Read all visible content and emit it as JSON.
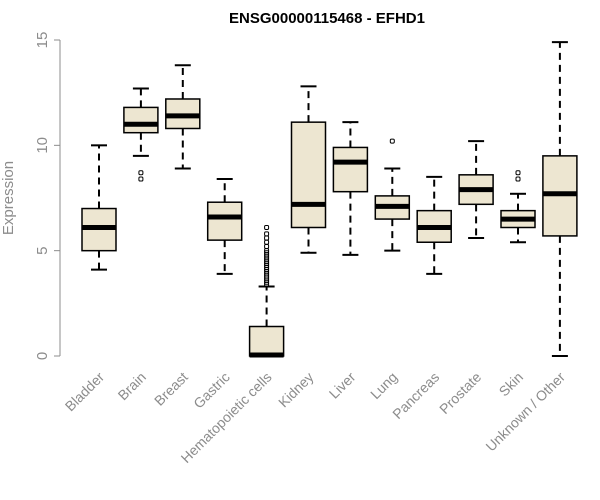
{
  "chart_data": {
    "type": "boxplot",
    "title": "ENSG00000115468 - EFHD1",
    "ylabel": "Expression",
    "xlabel": "",
    "ylim": [
      0,
      15
    ],
    "yticks": [
      0,
      5,
      10,
      15
    ],
    "grid": false,
    "box_color": "#ede6d1",
    "line_color": "#000000",
    "categories": [
      "Bladder",
      "Brain",
      "Breast",
      "Gastric",
      "Hematopoietic cells",
      "Kidney",
      "Liver",
      "Lung",
      "Pancreas",
      "Prostate",
      "Skin",
      "Unknown / Other"
    ],
    "boxes": [
      {
        "category": "Bladder",
        "whisker_low": 4.1,
        "q1": 5.0,
        "median": 6.1,
        "q3": 7.0,
        "whisker_high": 10.0,
        "outliers": []
      },
      {
        "category": "Brain",
        "whisker_low": 9.5,
        "q1": 10.6,
        "median": 11.0,
        "q3": 11.8,
        "whisker_high": 12.7,
        "outliers": [
          8.4,
          8.7
        ]
      },
      {
        "category": "Breast",
        "whisker_low": 8.9,
        "q1": 10.8,
        "median": 11.4,
        "q3": 12.2,
        "whisker_high": 13.8,
        "outliers": []
      },
      {
        "category": "Gastric",
        "whisker_low": 3.9,
        "q1": 5.5,
        "median": 6.6,
        "q3": 7.3,
        "whisker_high": 8.4,
        "outliers": []
      },
      {
        "category": "Hematopoietic cells",
        "whisker_low": 0.0,
        "q1": 0.0,
        "median": 0.05,
        "q3": 1.4,
        "whisker_high": 3.3,
        "outliers": [
          3.4,
          3.5,
          3.6,
          3.7,
          3.8,
          3.9,
          4.0,
          4.1,
          4.2,
          4.3,
          4.4,
          4.5,
          4.6,
          4.7,
          4.8,
          4.9,
          5.0,
          5.2,
          5.4,
          5.6,
          5.8,
          6.1
        ]
      },
      {
        "category": "Kidney",
        "whisker_low": 4.9,
        "q1": 6.1,
        "median": 7.2,
        "q3": 11.1,
        "whisker_high": 12.8,
        "outliers": []
      },
      {
        "category": "Liver",
        "whisker_low": 4.8,
        "q1": 7.8,
        "median": 9.2,
        "q3": 9.9,
        "whisker_high": 11.1,
        "outliers": []
      },
      {
        "category": "Lung",
        "whisker_low": 5.0,
        "q1": 6.5,
        "median": 7.1,
        "q3": 7.6,
        "whisker_high": 8.9,
        "outliers": [
          10.2
        ]
      },
      {
        "category": "Pancreas",
        "whisker_low": 3.9,
        "q1": 5.4,
        "median": 6.1,
        "q3": 6.9,
        "whisker_high": 8.5,
        "outliers": []
      },
      {
        "category": "Prostate",
        "whisker_low": 5.6,
        "q1": 7.2,
        "median": 7.9,
        "q3": 8.6,
        "whisker_high": 10.2,
        "outliers": []
      },
      {
        "category": "Skin",
        "whisker_low": 5.4,
        "q1": 6.1,
        "median": 6.5,
        "q3": 6.9,
        "whisker_high": 7.7,
        "outliers": [
          8.4,
          8.7
        ]
      },
      {
        "category": "Unknown / Other",
        "whisker_low": 0.0,
        "q1": 5.7,
        "median": 7.7,
        "q3": 9.5,
        "whisker_high": 14.9,
        "outliers": []
      }
    ]
  }
}
